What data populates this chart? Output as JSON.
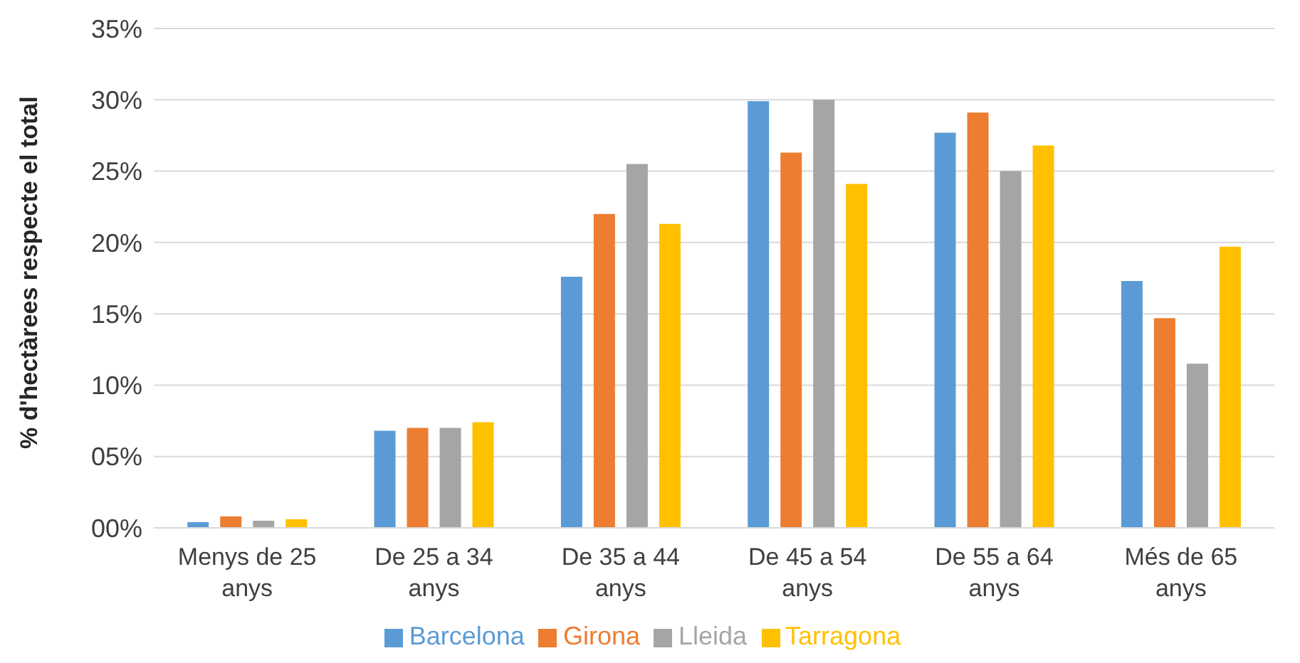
{
  "chart_data": {
    "type": "bar",
    "ylabel": "% d'hectàrees respecte el total",
    "categories": [
      "Menys de 25 anys",
      "De 25 a 34 anys",
      "De 35 a 44 anys",
      "De 45 a 54 anys",
      "De 55 a 64 anys",
      "Més de 65 anys"
    ],
    "series": [
      {
        "name": "Barcelona",
        "color": "#5b9bd5",
        "values": [
          0.4,
          6.8,
          17.6,
          29.9,
          27.7,
          17.3
        ]
      },
      {
        "name": "Girona",
        "color": "#ed7d31",
        "values": [
          0.8,
          7.0,
          22.0,
          26.3,
          29.1,
          14.7
        ]
      },
      {
        "name": "Lleida",
        "color": "#a5a5a5",
        "values": [
          0.5,
          7.0,
          25.5,
          30.0,
          25.0,
          11.5
        ]
      },
      {
        "name": "Tarragona",
        "color": "#ffc000",
        "values": [
          0.6,
          7.4,
          21.3,
          24.1,
          26.8,
          19.7
        ]
      }
    ],
    "ylim": [
      0,
      35
    ],
    "yticks": [
      {
        "value": 0,
        "label": "00%"
      },
      {
        "value": 5,
        "label": "05%"
      },
      {
        "value": 10,
        "label": "10%"
      },
      {
        "value": 15,
        "label": "15%"
      },
      {
        "value": 20,
        "label": "20%"
      },
      {
        "value": 25,
        "label": "25%"
      },
      {
        "value": 30,
        "label": "30%"
      },
      {
        "value": 35,
        "label": "35%"
      }
    ],
    "grid": "y",
    "legend": "bottom"
  }
}
